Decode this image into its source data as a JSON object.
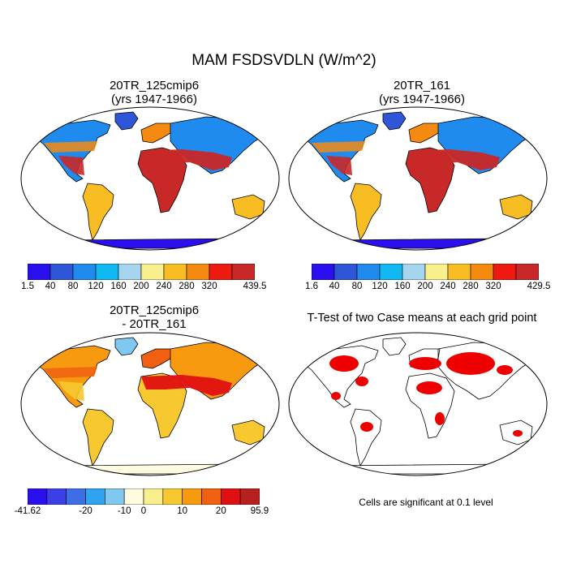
{
  "title": "MAM FSDSVDLN (W/m^2)",
  "panels": [
    {
      "id": "a",
      "title_line1": "20TR_125cmip6",
      "title_line2": "(yrs 1947-1966)"
    },
    {
      "id": "b",
      "title_line1": "20TR_161",
      "title_line2": "(yrs 1947-1966)"
    },
    {
      "id": "c",
      "title_line1": "20TR_125cmip6",
      "title_line2": "- 20TR_161"
    },
    {
      "id": "d",
      "title_line1": "T-Test of two Case means at each grid point"
    }
  ],
  "note": "Cells are significant at 0.1 level",
  "colorbars": {
    "a": {
      "colors": [
        "#2a10ee",
        "#2f56d8",
        "#1f8bef",
        "#10b8f2",
        "#a6d6ef",
        "#f8f08c",
        "#f7bd22",
        "#f48a10",
        "#ee1a10",
        "#c82828"
      ],
      "labels": [
        "1.5",
        "40",
        "80",
        "120",
        "160",
        "200",
        "240",
        "280",
        "320",
        "439.5"
      ]
    },
    "b": {
      "colors": [
        "#2a10ee",
        "#2f56d8",
        "#1f8bef",
        "#10b8f2",
        "#a6d6ef",
        "#f8f08c",
        "#f7bd22",
        "#f48a10",
        "#ee1a10",
        "#c82828"
      ],
      "labels": [
        "1.6",
        "40",
        "80",
        "120",
        "160",
        "200",
        "240",
        "280",
        "320",
        "429.5"
      ]
    },
    "c": {
      "colors": [
        "#2a10ee",
        "#3b3fe6",
        "#3d6ee6",
        "#2ea3ef",
        "#80c8f0",
        "#fffbe0",
        "#f8f08c",
        "#f7c830",
        "#f79a10",
        "#f06010",
        "#e01010",
        "#b82020"
      ],
      "labels": [
        "-41.62",
        "-20",
        "-10",
        "0",
        "10",
        "20",
        "95.9"
      ]
    }
  },
  "map_colors": {
    "ocean": "#ffffff",
    "coast": "#000000",
    "significant": "#ee0000"
  },
  "map_regions": {
    "a": {
      "north": "#1f8bef",
      "tropics": "#c82828",
      "sahara": "#c82828",
      "midlat": "#f48a10",
      "south": "#f7bd22",
      "antarctica": "#2a10ee",
      "greenland": "#2f56d8"
    },
    "b": {
      "north": "#1f8bef",
      "tropics": "#c82828",
      "sahara": "#c82828",
      "midlat": "#f48a10",
      "south": "#f7bd22",
      "antarctica": "#2a10ee",
      "greenland": "#2f56d8"
    },
    "c": {
      "north": "#f79a10",
      "tropics": "#f7c830",
      "sahara": "#e01010",
      "midlat": "#f06010",
      "south": "#f7c830",
      "antarctica": "#fffbe0",
      "greenland": "#80c8f0"
    }
  }
}
